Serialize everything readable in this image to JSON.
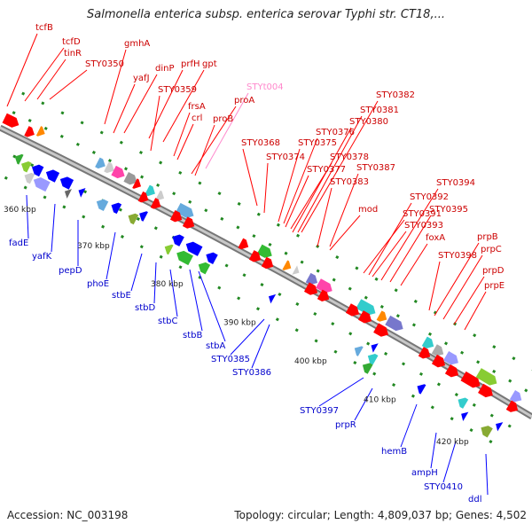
{
  "title": "Salmonella enterica subsp. enterica serovar Typhi str. CT18,...",
  "footer": {
    "accession": "Accession: NC_003198",
    "topology": "Topology: circular; Length: 4,809,037 bp; Genes: 4,502"
  },
  "colors": {
    "forward_gene": "#ff0000",
    "reverse_gene": "#0000ff",
    "forward_label": "#cc0000",
    "reverse_label": "#0000cc",
    "trna_label": "#ff88cc",
    "ruler": "#999999",
    "tick": "#228822"
  },
  "ruler_ticks": [
    {
      "label": "360 kbp"
    },
    {
      "label": "370 kbp"
    },
    {
      "label": "380 kbp"
    },
    {
      "label": "390 kbp"
    },
    {
      "label": "400 kbp"
    },
    {
      "label": "410 kbp"
    },
    {
      "label": "420 kbp"
    }
  ],
  "forward_labels": [
    "tcfB",
    "tcfD",
    "tinR",
    "STY0350",
    "gmhA",
    "yafJ",
    "dinP",
    "prfH",
    "gpt",
    "STY0359",
    "STYt004",
    "proA",
    "frsA",
    "crl",
    "proB",
    "STY0368",
    "STY0374",
    "STY0375",
    "STY0376",
    "STY0377",
    "STY0378",
    "STY0380",
    "STY0381",
    "STY0382",
    "STY0383",
    "STY0387",
    "mod",
    "STY0391",
    "STY0392",
    "STY0393",
    "STY0394",
    "STY0395",
    "foxA",
    "STY0398",
    "prpB",
    "prpC",
    "prpD",
    "prpE"
  ],
  "reverse_labels": [
    "fadE",
    "yafK",
    "pepD",
    "phoE",
    "stbE",
    "stbD",
    "stbC",
    "stbB",
    "stbA",
    "STY0385",
    "STY0386",
    "STY0397",
    "prpR",
    "hemB",
    "ampH",
    "STY0410",
    "ddl"
  ]
}
